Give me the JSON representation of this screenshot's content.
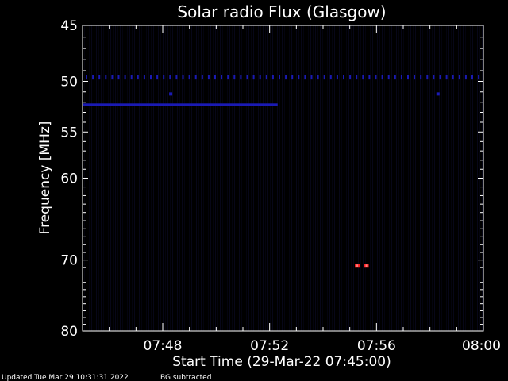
{
  "chart_data": {
    "type": "heatmap",
    "title": "Solar radio Flux (Glasgow)",
    "xlabel": "Start Time (29-Mar-22 07:45:00)",
    "ylabel": "Frequency [MHz]",
    "x_ticks": [
      {
        "value": 3,
        "label": "07:48"
      },
      {
        "value": 7,
        "label": "07:52"
      },
      {
        "value": 11,
        "label": "07:56"
      },
      {
        "value": 15,
        "label": "08:00"
      }
    ],
    "y_ticks": [
      {
        "value": 45,
        "label": "45"
      },
      {
        "value": 50,
        "label": "50"
      },
      {
        "value": 55,
        "label": "55"
      },
      {
        "value": 60,
        "label": "60"
      },
      {
        "value": 70,
        "label": "70"
      },
      {
        "value": 80,
        "label": "80"
      }
    ],
    "xlim": [
      0,
      15
    ],
    "ylim": [
      45,
      80
    ],
    "y_scale": "log",
    "y_reversed": true,
    "background": "BG subtracted",
    "colors": {
      "background": "#000000",
      "frame": "#ffffff",
      "low": "#05051e",
      "mid": "#1a1ab4",
      "high": "#ff2020"
    },
    "features": [
      {
        "name": "interference-band-49.6MHz",
        "x_start": 0,
        "x_end": 15,
        "freq": 49.6,
        "intensity": "mid"
      },
      {
        "name": "interference-band-52.2MHz",
        "x_start": 0,
        "x_end": 7.3,
        "freq": 52.2,
        "intensity": "mid"
      },
      {
        "name": "hot-spot-1",
        "x": 10.28,
        "freq": 70.8,
        "intensity": "high"
      },
      {
        "name": "hot-spot-2",
        "x": 10.62,
        "freq": 70.8,
        "intensity": "high"
      },
      {
        "name": "blip-1",
        "x": 3.3,
        "freq": 51.2,
        "intensity": "mid"
      },
      {
        "name": "blip-2",
        "x": 13.3,
        "freq": 51.2,
        "intensity": "mid"
      }
    ]
  },
  "footer": {
    "updated": "Updated Tue Mar 29 10:31:31 2022",
    "note": "BG subtracted"
  }
}
